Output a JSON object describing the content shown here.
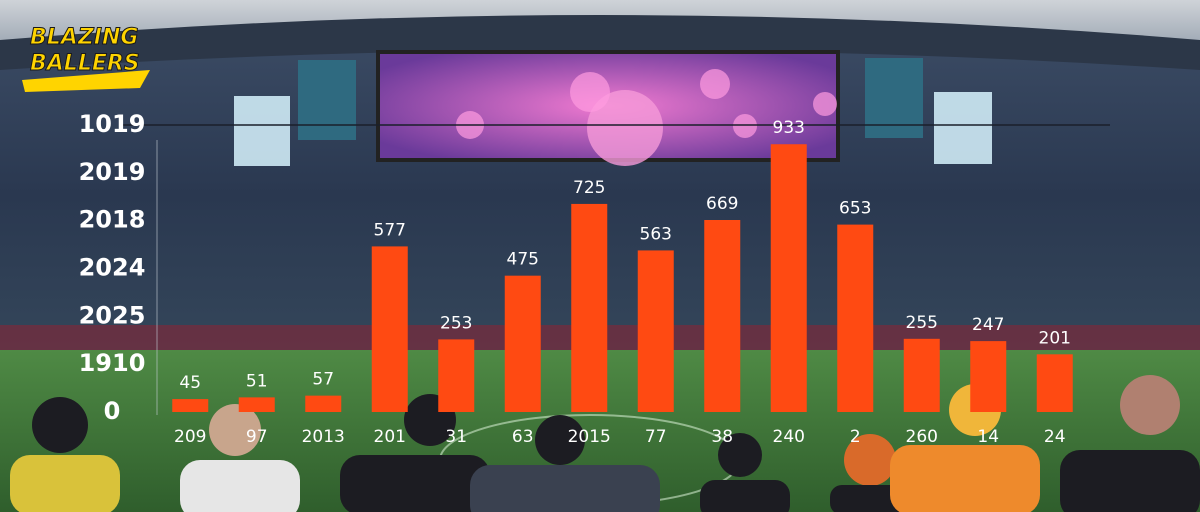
{
  "chart_data": {
    "type": "bar",
    "title": "BLAZING BALLERS",
    "y_labels": [
      "1019",
      "2019",
      "2018",
      "2024",
      "2025",
      "1910",
      "0"
    ],
    "categories": [
      "209",
      "97",
      "2013",
      "201",
      "31",
      "63",
      "2015",
      "77",
      "38",
      "240",
      "2",
      "260",
      "14",
      "24"
    ],
    "values": [
      45,
      51,
      57,
      577,
      253,
      475,
      725,
      563,
      669,
      933,
      653,
      255,
      247,
      201
    ],
    "color": "#ff4a12",
    "ylim": [
      0,
      1000
    ]
  }
}
